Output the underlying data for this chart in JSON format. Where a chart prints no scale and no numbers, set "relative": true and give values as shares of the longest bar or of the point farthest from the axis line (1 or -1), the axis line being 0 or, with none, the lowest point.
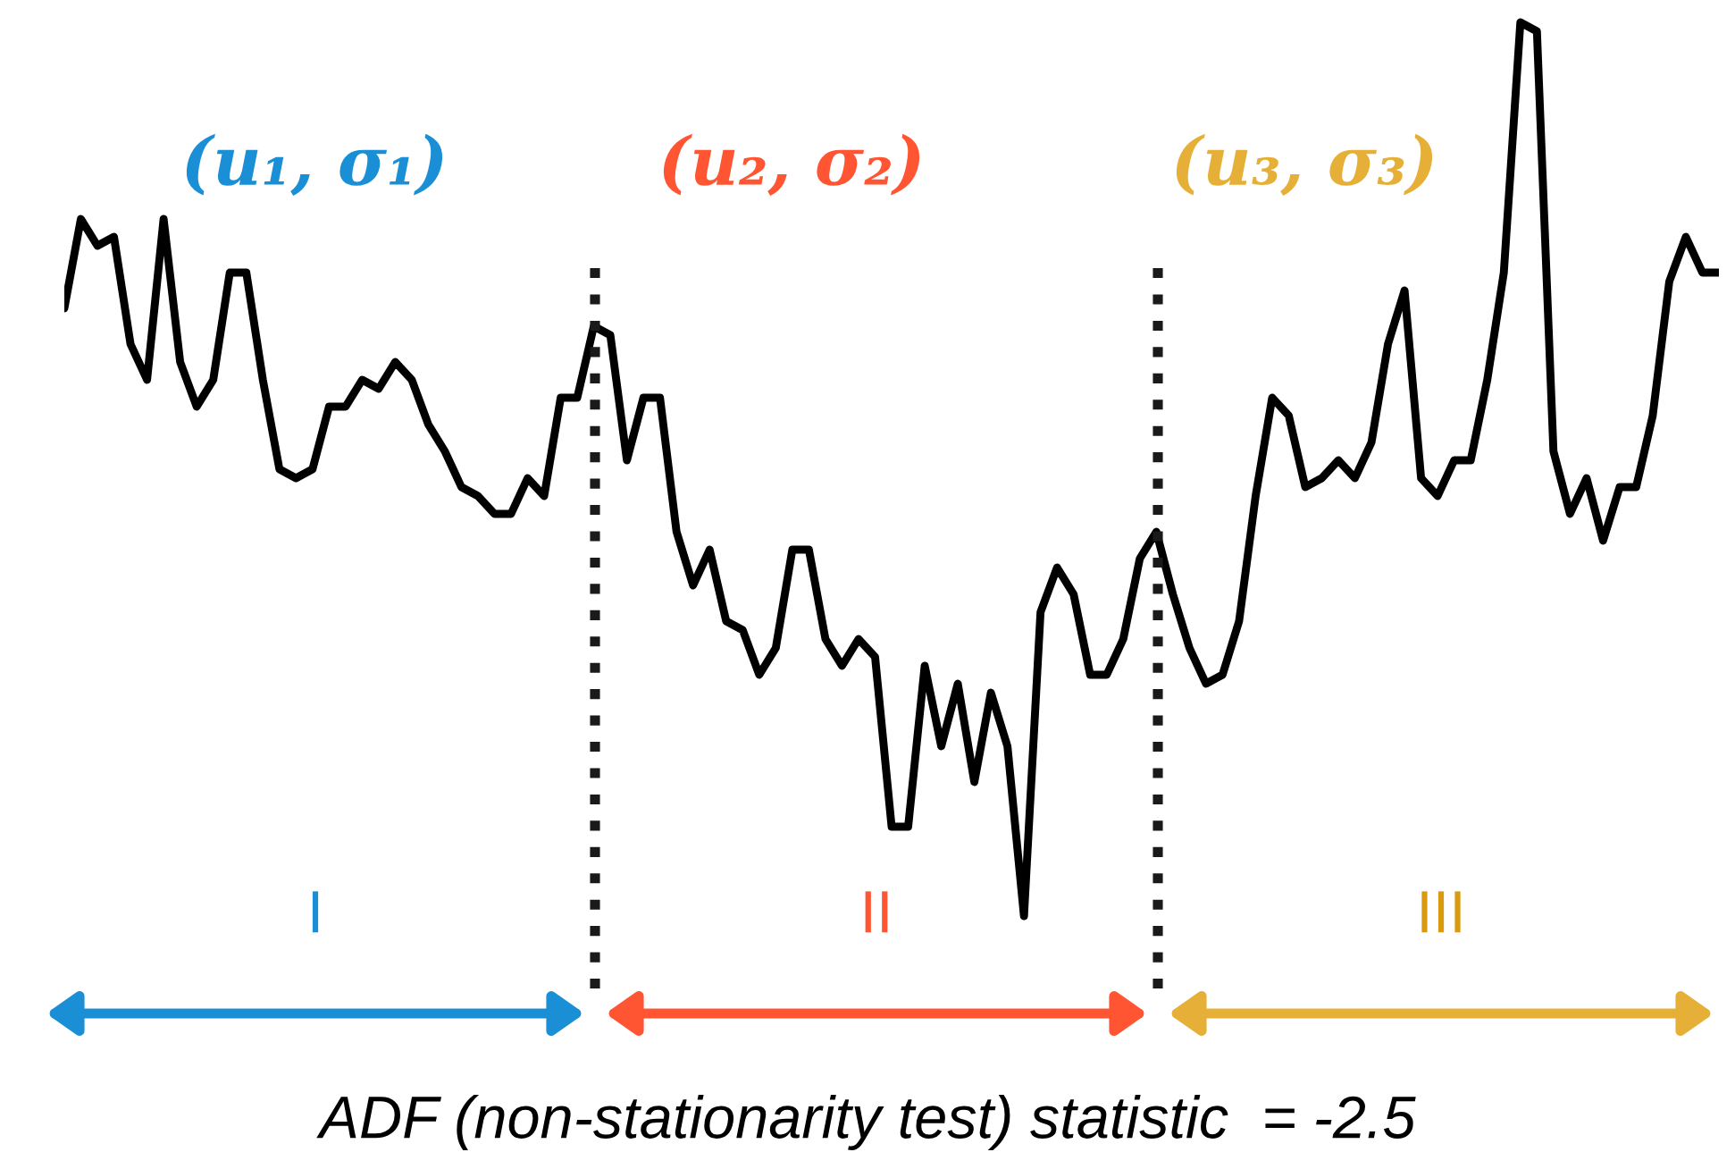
{
  "chart_data": {
    "type": "line",
    "relative": true,
    "line_style": "solid",
    "marker": "none",
    "categories": [
      null,
      null,
      null,
      null,
      null,
      null,
      null,
      null,
      null,
      null,
      null,
      null,
      null,
      null,
      null,
      null,
      null,
      null,
      null,
      null,
      null,
      null,
      null,
      null,
      null,
      null,
      null,
      null,
      null,
      null,
      null,
      null,
      null,
      null,
      null,
      null,
      null,
      null,
      null,
      null,
      null,
      null,
      null,
      null,
      null,
      null,
      null,
      null,
      null,
      null,
      null,
      null,
      null,
      null,
      null,
      null,
      null,
      null,
      null,
      null,
      null,
      null,
      null,
      null,
      null,
      null,
      null,
      null,
      null,
      null,
      null,
      null,
      null,
      null,
      null,
      null,
      null,
      null,
      null,
      null,
      null,
      null,
      null,
      null,
      null,
      null,
      null,
      null,
      null,
      null,
      null,
      null,
      null,
      null,
      null,
      null,
      null,
      null,
      null,
      null,
      null
    ],
    "series": [
      {
        "color": "#000000",
        "values": [
          0.68,
          0.78,
          0.75,
          0.76,
          0.64,
          0.6,
          0.78,
          0.62,
          0.57,
          0.6,
          0.72,
          0.72,
          0.6,
          0.5,
          0.49,
          0.5,
          0.57,
          0.57,
          0.6,
          0.59,
          0.62,
          0.6,
          0.55,
          0.52,
          0.48,
          0.47,
          0.45,
          0.45,
          0.49,
          0.47,
          0.58,
          0.58,
          0.66,
          0.65,
          0.51,
          0.58,
          0.58,
          0.43,
          0.37,
          0.41,
          0.33,
          0.32,
          0.27,
          0.3,
          0.41,
          0.41,
          0.31,
          0.28,
          0.31,
          0.29,
          0.1,
          0.1,
          0.28,
          0.19,
          0.26,
          0.15,
          0.25,
          0.19,
          0,
          0.34,
          0.39,
          0.36,
          0.27,
          0.27,
          0.31,
          0.4,
          0.43,
          0.36,
          0.3,
          0.26,
          0.27,
          0.33,
          0.47,
          0.58,
          0.56,
          0.48,
          0.49,
          0.51,
          0.49,
          0.53,
          0.64,
          0.7,
          0.49,
          0.47,
          0.51,
          0.51,
          0.6,
          0.72,
          1,
          0.99,
          0.52,
          0.45,
          0.49,
          0.42,
          0.48,
          0.48,
          0.56,
          0.71,
          0.76,
          0.72,
          0.72
        ]
      }
    ],
    "annotations": [
      "(u₁, σ₁)",
      "(u₂, σ₂)",
      "(u₃, σ₃)",
      "I",
      "II",
      "III",
      "ADF (non-stationarity test) statistic  = -2.5"
    ]
  }
}
